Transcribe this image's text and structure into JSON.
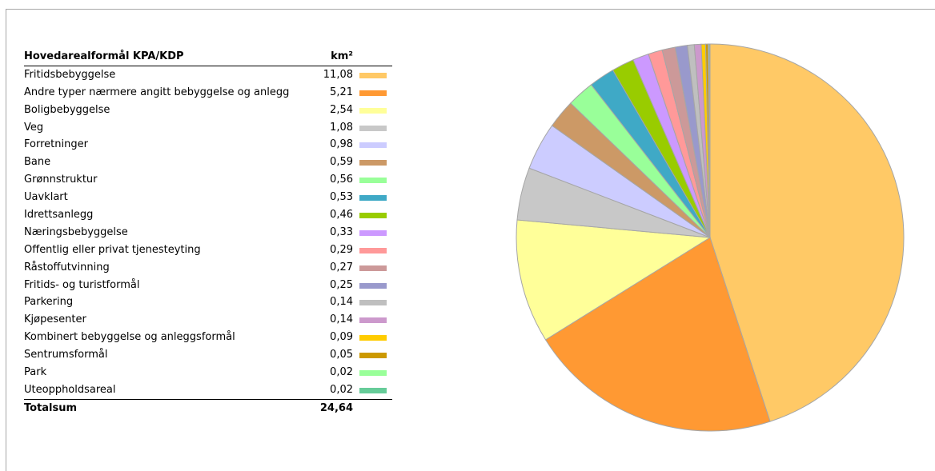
{
  "chart_data": {
    "type": "pie",
    "table": {
      "header_label": "Hovedarealformål KPA/KDP",
      "header_unit": "km²",
      "total_label": "Totalsum",
      "total_value": "24,64"
    },
    "slices": [
      {
        "name": "Fritidsbebyggelse",
        "value": 11.08,
        "label": "11,08",
        "color": "#ffc966"
      },
      {
        "name": "Andre typer nærmere angitt bebyggelse og anlegg",
        "value": 5.21,
        "label": "5,21",
        "color": "#ff9933"
      },
      {
        "name": "Boligbebyggelse",
        "value": 2.54,
        "label": "2,54",
        "color": "#ffff99"
      },
      {
        "name": "Veg",
        "value": 1.08,
        "label": "1,08",
        "color": "#c8c8c8"
      },
      {
        "name": "Forretninger",
        "value": 0.98,
        "label": "0,98",
        "color": "#ccccff"
      },
      {
        "name": "Bane",
        "value": 0.59,
        "label": "0,59",
        "color": "#cc9966"
      },
      {
        "name": "Grønnstruktur",
        "value": 0.56,
        "label": "0,56",
        "color": "#99ff99"
      },
      {
        "name": "Uavklart",
        "value": 0.53,
        "label": "0,53",
        "color": "#3fa9c6"
      },
      {
        "name": "Idrettsanlegg",
        "value": 0.46,
        "label": "0,46",
        "color": "#99cc00"
      },
      {
        "name": "Næringsbebyggelse",
        "value": 0.33,
        "label": "0,33",
        "color": "#cc99ff"
      },
      {
        "name": "Offentlig eller privat tjenesteyting",
        "value": 0.29,
        "label": "0,29",
        "color": "#ff9999"
      },
      {
        "name": "Råstoffutvinning",
        "value": 0.27,
        "label": "0,27",
        "color": "#cc9999"
      },
      {
        "name": "Fritids- og turistformål",
        "value": 0.25,
        "label": "0,25",
        "color": "#9999cc"
      },
      {
        "name": "Parkering",
        "value": 0.14,
        "label": "0,14",
        "color": "#bfbfbf"
      },
      {
        "name": "Kjøpesenter",
        "value": 0.14,
        "label": "0,14",
        "color": "#cc99cc"
      },
      {
        "name": "Kombinert bebyggelse og anleggsformål",
        "value": 0.09,
        "label": "0,09",
        "color": "#ffcc00"
      },
      {
        "name": "Sentrumsformål",
        "value": 0.05,
        "label": "0,05",
        "color": "#cc9900"
      },
      {
        "name": "Park",
        "value": 0.02,
        "label": "0,02",
        "color": "#99ff99"
      },
      {
        "name": "Uteoppholdsareal",
        "value": 0.02,
        "label": "0,02",
        "color": "#66cc99"
      }
    ]
  }
}
